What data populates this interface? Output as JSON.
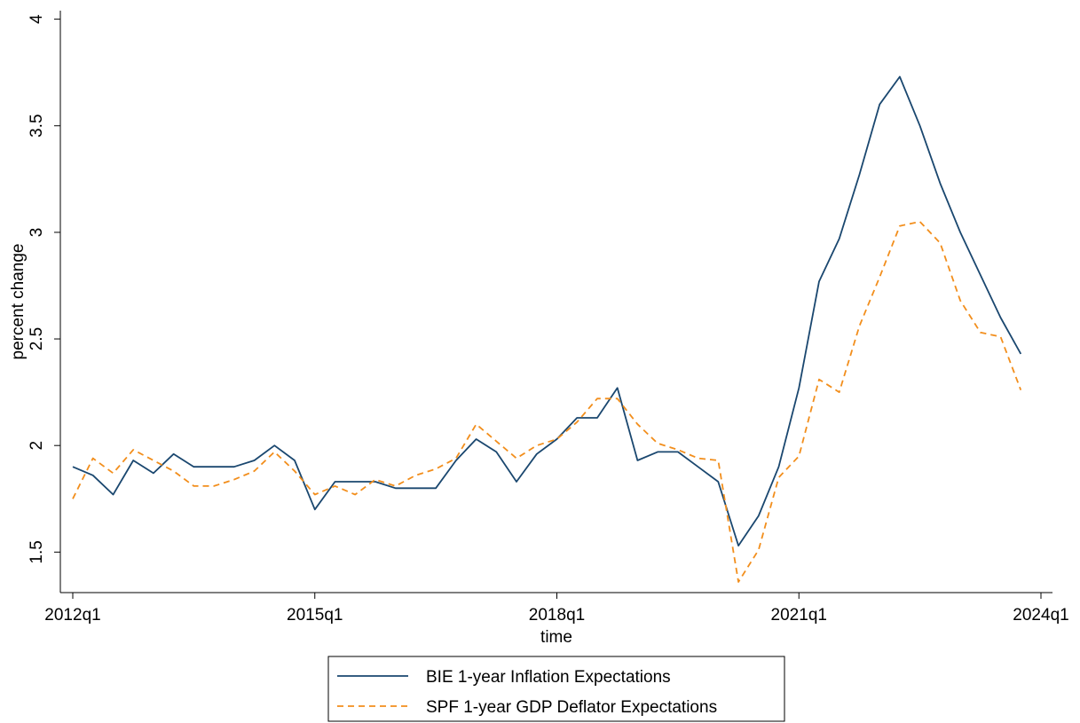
{
  "chart_data": {
    "type": "line",
    "y_label": "percent change",
    "x_label": "time",
    "x": [
      "2012q1",
      "2012q2",
      "2012q3",
      "2012q4",
      "2013q1",
      "2013q2",
      "2013q3",
      "2013q4",
      "2014q1",
      "2014q2",
      "2014q3",
      "2014q4",
      "2015q1",
      "2015q2",
      "2015q3",
      "2015q4",
      "2016q1",
      "2016q2",
      "2016q3",
      "2016q4",
      "2017q1",
      "2017q2",
      "2017q3",
      "2017q4",
      "2018q1",
      "2018q2",
      "2018q3",
      "2018q4",
      "2019q1",
      "2019q2",
      "2019q3",
      "2019q4",
      "2020q1",
      "2020q2",
      "2020q3",
      "2020q4",
      "2021q1",
      "2021q2",
      "2021q3",
      "2021q4",
      "2022q1",
      "2022q2",
      "2022q3",
      "2022q4",
      "2023q1",
      "2023q2",
      "2023q3",
      "2023q4"
    ],
    "series": [
      {
        "name": "BIE 1-year Inflation Expectations",
        "color": "#1a476f",
        "dash": "solid",
        "values": [
          1.9,
          1.86,
          1.77,
          1.93,
          1.87,
          1.96,
          1.9,
          1.9,
          1.9,
          1.93,
          2.0,
          1.93,
          1.7,
          1.83,
          1.83,
          1.83,
          1.8,
          1.8,
          1.8,
          1.93,
          2.03,
          1.97,
          1.83,
          1.96,
          2.03,
          2.13,
          2.13,
          2.27,
          1.93,
          1.97,
          1.97,
          1.9,
          1.83,
          1.53,
          1.67,
          1.9,
          2.27,
          2.77,
          2.97,
          3.27,
          3.6,
          3.73,
          3.5,
          3.23,
          3.0,
          2.8,
          2.6,
          2.43
        ]
      },
      {
        "name": "SPF 1-year GDP Deflator Expectations",
        "color": "#f28e1c",
        "dash": "dashed",
        "values": [
          1.75,
          1.94,
          1.87,
          1.98,
          1.93,
          1.88,
          1.81,
          1.81,
          1.84,
          1.88,
          1.97,
          1.88,
          1.77,
          1.81,
          1.77,
          1.84,
          1.81,
          1.86,
          1.89,
          1.94,
          2.1,
          2.02,
          1.94,
          2.0,
          2.03,
          2.11,
          2.22,
          2.22,
          2.1,
          2.01,
          1.98,
          1.94,
          1.93,
          1.36,
          1.51,
          1.85,
          1.95,
          2.31,
          2.25,
          2.56,
          2.79,
          3.03,
          3.05,
          2.95,
          2.68,
          2.53,
          2.51,
          2.26
        ]
      }
    ],
    "xlim": [
      "2012q1",
      "2024q1"
    ],
    "xticks": [
      "2012q1",
      "2015q1",
      "2018q1",
      "2021q1",
      "2024q1"
    ],
    "ylim": [
      1.31,
      4.04
    ],
    "yticks": [
      1.5,
      2,
      2.5,
      3,
      3.5,
      4
    ],
    "grid": false,
    "legend": "bottom"
  }
}
